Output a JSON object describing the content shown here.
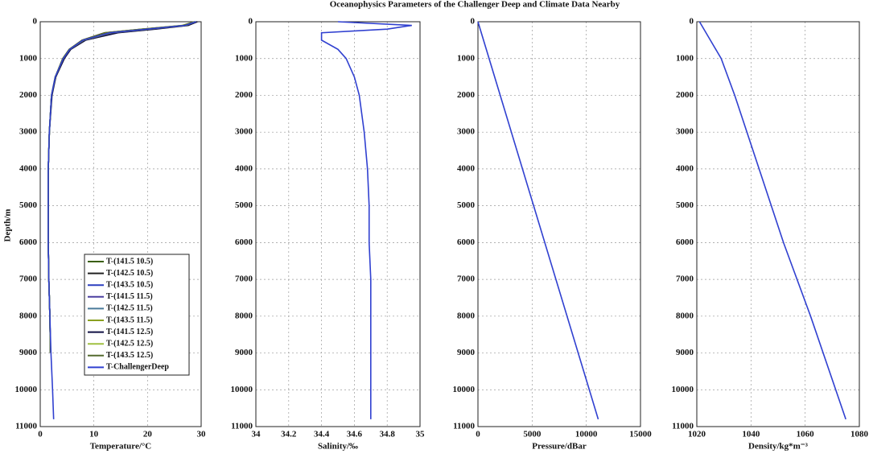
{
  "chart_data": [
    {
      "type": "line",
      "title": "Oceanophysics Parameters of the Challenger Deep and Climate Data Nearby",
      "ylabel": "Depth/m",
      "xlabel": "Temperature/°C",
      "xlim": [
        0,
        30
      ],
      "xticks": [
        0,
        10,
        20,
        30
      ],
      "ylim": [
        0,
        11000
      ],
      "yticks": [
        0,
        1000,
        2000,
        3000,
        4000,
        5000,
        6000,
        7000,
        8000,
        9000,
        10000,
        11000
      ],
      "grid": true,
      "legend": "lower-left",
      "y": [
        0,
        100,
        200,
        300,
        500,
        750,
        1000,
        1500,
        2000,
        3000,
        4000,
        5000,
        6000,
        7000,
        8000,
        9000,
        10000,
        10800
      ],
      "series": [
        {
          "name": "T-(141.5 10.5)",
          "color": "#3a5f0b",
          "values": [
            29.2,
            27.5,
            21,
            14,
            8.3,
            5.6,
            4.4,
            2.9,
            2.1,
            1.7,
            1.5,
            1.5,
            1.5,
            1.6,
            1.8,
            1.9,
            null,
            null
          ]
        },
        {
          "name": "T-(142.5 10.5)",
          "color": "#222222",
          "values": [
            29.0,
            27.0,
            19,
            12,
            7.8,
            5.4,
            4.2,
            2.8,
            2.1,
            1.7,
            1.5,
            1.5,
            1.5,
            1.6,
            1.8,
            1.9,
            null,
            null
          ]
        },
        {
          "name": "T-(143.5 10.5)",
          "color": "#2b3fbf",
          "values": [
            28.8,
            26.8,
            19.5,
            12.5,
            8,
            5.5,
            4.3,
            2.8,
            2.1,
            1.7,
            1.5,
            1.5,
            1.5,
            1.6,
            1.8,
            1.9,
            null,
            null
          ]
        },
        {
          "name": "T-(141.5 11.5)",
          "color": "#4b3fa0",
          "values": [
            29.1,
            27.2,
            20.5,
            13.5,
            8.2,
            5.6,
            4.4,
            2.9,
            2.1,
            1.7,
            1.5,
            1.5,
            1.5,
            1.6,
            1.8,
            1.9,
            null,
            null
          ]
        },
        {
          "name": "T-(142.5 11.5)",
          "color": "#4a7a9a",
          "values": [
            28.9,
            26.9,
            20,
            13,
            8,
            5.5,
            4.3,
            2.8,
            2.1,
            1.7,
            1.5,
            1.5,
            1.5,
            1.6,
            1.8,
            1.9,
            null,
            null
          ]
        },
        {
          "name": "T-(143.5 11.5)",
          "color": "#8aa020",
          "values": [
            28.7,
            26.5,
            19,
            12.2,
            7.9,
            5.4,
            4.2,
            2.8,
            2.1,
            1.7,
            1.5,
            1.5,
            1.5,
            1.6,
            1.8,
            1.9,
            null,
            null
          ]
        },
        {
          "name": "T-(141.5 12.5)",
          "color": "#111144",
          "values": [
            29.3,
            27.6,
            21.5,
            14.5,
            8.5,
            5.7,
            4.5,
            2.9,
            2.2,
            1.7,
            1.5,
            1.5,
            1.5,
            1.6,
            1.8,
            1.9,
            null,
            null
          ]
        },
        {
          "name": "T-(142.5 12.5)",
          "color": "#a0c040",
          "values": [
            29.0,
            27.1,
            20.2,
            13.2,
            8.1,
            5.5,
            4.3,
            2.8,
            2.1,
            1.7,
            1.5,
            1.5,
            1.5,
            1.6,
            1.8,
            1.9,
            null,
            null
          ]
        },
        {
          "name": "T-(143.5 12.5)",
          "color": "#556b2f",
          "values": [
            28.8,
            26.7,
            19.2,
            12.4,
            7.9,
            5.4,
            4.2,
            2.8,
            2.1,
            1.7,
            1.5,
            1.5,
            1.5,
            1.6,
            1.8,
            1.9,
            null,
            null
          ]
        },
        {
          "name": "T-ChallengerDeep",
          "color": "#3040d0",
          "values": [
            29,
            27,
            20,
            13,
            8,
            5.5,
            4.3,
            2.8,
            2.1,
            1.7,
            1.5,
            1.5,
            1.5,
            1.6,
            1.8,
            2.0,
            2.3,
            2.5
          ]
        }
      ]
    },
    {
      "type": "line",
      "xlabel": "Salinity/‰",
      "xlim": [
        34,
        35
      ],
      "xticks": [
        34,
        34.2,
        34.4,
        34.6,
        34.8,
        35
      ],
      "ylim": [
        0,
        11000
      ],
      "yticks": [
        0,
        1000,
        2000,
        3000,
        4000,
        5000,
        6000,
        7000,
        8000,
        9000,
        10000,
        11000
      ],
      "grid": true,
      "y": [
        0,
        100,
        200,
        300,
        500,
        750,
        1000,
        1500,
        2000,
        3000,
        4000,
        5000,
        6000,
        7000,
        8000,
        9000,
        10000,
        10800
      ],
      "series": [
        {
          "color": "#3040d0",
          "values": [
            34.5,
            34.95,
            34.8,
            34.4,
            34.4,
            34.5,
            34.55,
            34.6,
            34.63,
            34.66,
            34.68,
            34.69,
            34.69,
            34.7,
            34.7,
            34.7,
            34.7,
            34.7
          ]
        }
      ]
    },
    {
      "type": "line",
      "xlabel": "Pressure/dBar",
      "xlim": [
        0,
        15000
      ],
      "xticks": [
        0,
        5000,
        10000,
        15000
      ],
      "ylim": [
        0,
        11000
      ],
      "yticks": [
        0,
        1000,
        2000,
        3000,
        4000,
        5000,
        6000,
        7000,
        8000,
        9000,
        10000,
        11000
      ],
      "grid": true,
      "y": [
        0,
        10800
      ],
      "series": [
        {
          "color": "#3040d0",
          "values": [
            0,
            11100
          ]
        }
      ]
    },
    {
      "type": "line",
      "xlabel": "Density/kg*m⁻³",
      "xlim": [
        1020,
        1080
      ],
      "xticks": [
        1020,
        1040,
        1060,
        1080
      ],
      "ylim": [
        0,
        11000
      ],
      "yticks": [
        0,
        1000,
        2000,
        3000,
        4000,
        5000,
        6000,
        7000,
        8000,
        9000,
        10000,
        11000
      ],
      "grid": true,
      "y": [
        0,
        500,
        1000,
        2000,
        4000,
        6000,
        8000,
        10800
      ],
      "series": [
        {
          "color": "#3040d0",
          "values": [
            1021,
            1025,
            1029,
            1034,
            1043,
            1052,
            1062,
            1075
          ]
        }
      ]
    }
  ]
}
